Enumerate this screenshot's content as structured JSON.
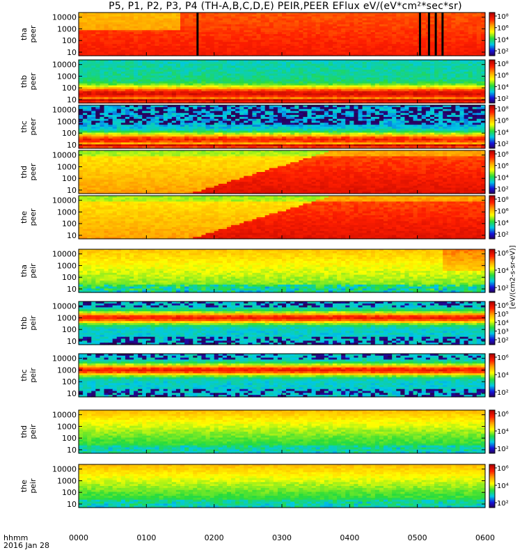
{
  "title": "P5, P1, P2, P3, P4 (TH-A,B,C,D,E) PEIR,PEER EFlux eV/(eV*cm²*sec*sr)",
  "footer": {
    "line1": "hhmm",
    "line2": "2016 Jan 28"
  },
  "colorbar_unit_label": "[eV/(cm2-s-sr-eV)]",
  "chart_data": {
    "type": "heatmap",
    "x_axis": {
      "label": "hhmm",
      "date": "2016 Jan 28",
      "range": [
        "0000",
        "0600"
      ],
      "tick_labels": [
        "0000",
        "0100",
        "0200",
        "0300",
        "0400",
        "0500",
        "0600"
      ]
    },
    "y_axis": {
      "units": "eV",
      "scale": "log",
      "range": [
        5,
        25000
      ],
      "tick_labels": [
        "10",
        "100",
        "1000",
        "10000"
      ]
    },
    "colorbar": {
      "scale": "log",
      "tick_labels": [
        "10²",
        "10⁴",
        "10⁶",
        "10⁸"
      ],
      "colors": [
        "#2a00a8",
        "#0055ff",
        "#00e0e0",
        "#30e030",
        "#ffff00",
        "#ffa000",
        "#ff1a00",
        "#b00000"
      ]
    },
    "panels": [
      {
        "probe": "tha",
        "species": "peer",
        "ylabel": [
          "tha",
          "peer"
        ],
        "type": "electron_red_hot",
        "colorbar_ticks": [
          "10⁸",
          "10⁶",
          "10⁴",
          "10²"
        ],
        "dropouts_hhmm": [
          "0145",
          "0502",
          "0510",
          "0516",
          "0522"
        ]
      },
      {
        "probe": "thb",
        "species": "peer",
        "ylabel": [
          "thb",
          "peer"
        ],
        "type": "electron_banded",
        "colorbar_ticks": [
          "10⁸",
          "10⁶",
          "10⁴",
          "10²"
        ]
      },
      {
        "probe": "thc",
        "species": "peer",
        "ylabel": [
          "thc",
          "peer"
        ],
        "type": "electron_banded_noisy",
        "colorbar_ticks": [
          "10⁸",
          "10⁶",
          "10⁴",
          "10²"
        ]
      },
      {
        "probe": "thd",
        "species": "peer",
        "ylabel": [
          "thd",
          "peer"
        ],
        "type": "electron_transition",
        "colorbar_ticks": [
          "10⁸",
          "10⁶",
          "10⁴",
          "10²"
        ]
      },
      {
        "probe": "the",
        "species": "peer",
        "ylabel": [
          "the",
          "peer"
        ],
        "type": "electron_transition",
        "colorbar_ticks": [
          "10⁸",
          "10⁶",
          "10⁴",
          "10²"
        ]
      },
      {
        "probe": "tha",
        "species": "peir",
        "ylabel": [
          "tha",
          "peir"
        ],
        "type": "ion_broad",
        "colorbar_ticks": [
          "10⁶",
          "10⁴",
          "10²"
        ]
      },
      {
        "probe": "thb",
        "species": "peir",
        "ylabel": [
          "thb",
          "peir"
        ],
        "type": "ion_band",
        "colorbar_ticks": [
          "10⁶",
          "10⁵",
          "10⁴",
          "10³",
          "10²"
        ]
      },
      {
        "probe": "thc",
        "species": "peir",
        "ylabel": [
          "thc",
          "peir"
        ],
        "type": "ion_band",
        "colorbar_ticks": [
          "10⁶",
          "10⁴",
          "10²"
        ]
      },
      {
        "probe": "thd",
        "species": "peir",
        "ylabel": [
          "thd",
          "peir"
        ],
        "type": "ion_broad_cool",
        "colorbar_ticks": [
          "10⁶",
          "10⁴",
          "10²"
        ]
      },
      {
        "probe": "the",
        "species": "peir",
        "ylabel": [
          "the",
          "peir"
        ],
        "type": "ion_broad_cool",
        "colorbar_ticks": [
          "10⁶",
          "10⁴",
          "10²"
        ]
      }
    ]
  }
}
